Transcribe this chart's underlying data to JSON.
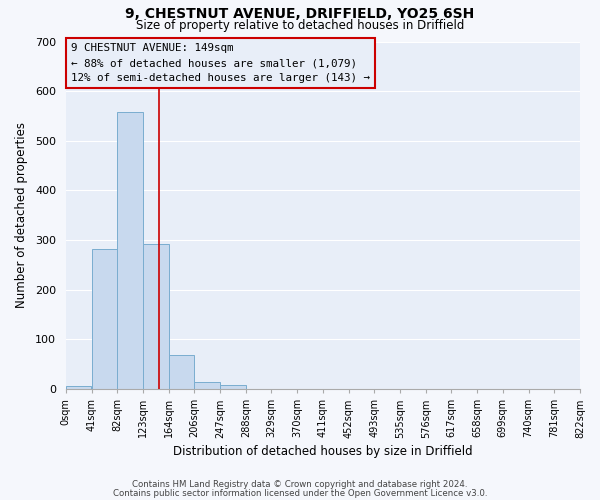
{
  "title1": "9, CHESTNUT AVENUE, DRIFFIELD, YO25 6SH",
  "title2": "Size of property relative to detached houses in Driffield",
  "xlabel": "Distribution of detached houses by size in Driffield",
  "ylabel": "Number of detached properties",
  "bin_edges": [
    0,
    41,
    82,
    123,
    164,
    205,
    246,
    287,
    328,
    369,
    410,
    451,
    492,
    533,
    574,
    615,
    656,
    697,
    738,
    779,
    820
  ],
  "bin_labels": [
    "0sqm",
    "41sqm",
    "82sqm",
    "123sqm",
    "164sqm",
    "206sqm",
    "247sqm",
    "288sqm",
    "329sqm",
    "370sqm",
    "411sqm",
    "452sqm",
    "493sqm",
    "535sqm",
    "576sqm",
    "617sqm",
    "658sqm",
    "699sqm",
    "740sqm",
    "781sqm",
    "822sqm"
  ],
  "bar_heights": [
    7,
    282,
    558,
    293,
    68,
    15,
    9,
    0,
    0,
    0,
    0,
    0,
    0,
    0,
    0,
    0,
    0,
    0,
    0,
    0
  ],
  "bar_color": "#c8d9ee",
  "bar_edge_color": "#7aadcf",
  "property_line_x": 149,
  "property_line_color": "#cc0000",
  "annotation_title": "9 CHESTNUT AVENUE: 149sqm",
  "annotation_line1": "← 88% of detached houses are smaller (1,079)",
  "annotation_line2": "12% of semi-detached houses are larger (143) →",
  "annotation_box_color": "#cc0000",
  "ylim": [
    0,
    700
  ],
  "yticks": [
    0,
    100,
    200,
    300,
    400,
    500,
    600,
    700
  ],
  "footer1": "Contains HM Land Registry data © Crown copyright and database right 2024.",
  "footer2": "Contains public sector information licensed under the Open Government Licence v3.0.",
  "plot_bg_color": "#e8eef8",
  "fig_bg_color": "#f5f7fc",
  "grid_color": "#ffffff"
}
